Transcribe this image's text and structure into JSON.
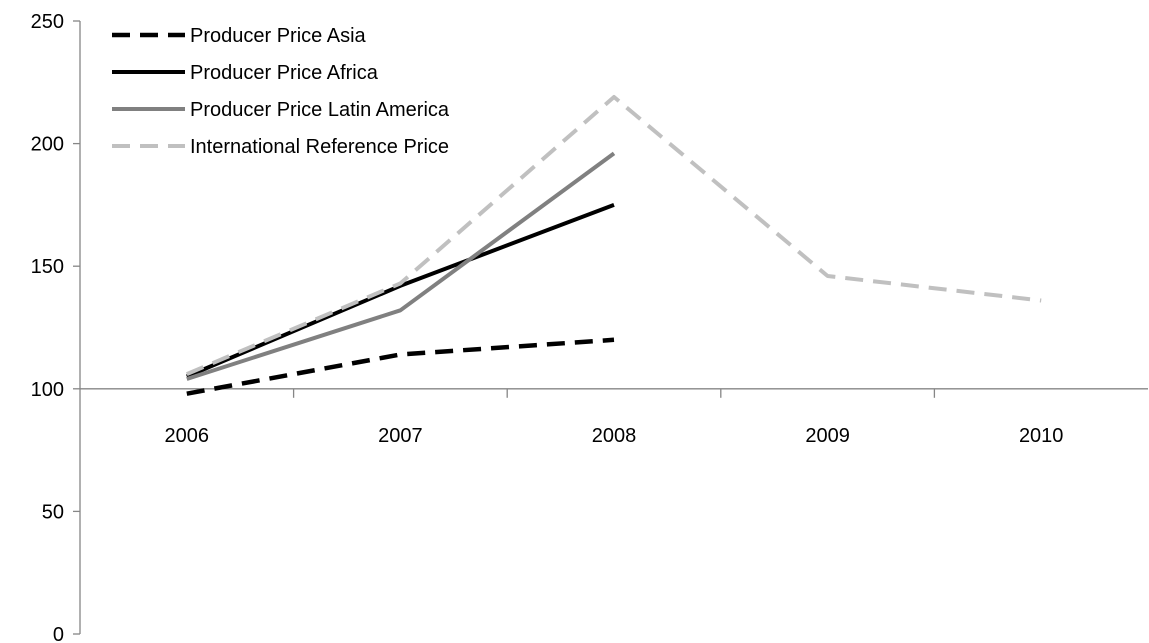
{
  "chart_data": {
    "type": "line",
    "title": "",
    "xlabel": "",
    "ylabel": "",
    "categories": [
      "2006",
      "2007",
      "2008",
      "2009",
      "2010"
    ],
    "ylim": [
      0,
      250
    ],
    "y_ticks": [
      "0",
      "50",
      "100",
      "150",
      "200",
      "250"
    ],
    "x_axis_crosses_at": 100,
    "grid": false,
    "legend_position": "top-left",
    "series": [
      {
        "name": "Producer Price Asia",
        "values": [
          98,
          114,
          120,
          null,
          null
        ],
        "color": "#000000",
        "line_style": "dashed"
      },
      {
        "name": "Producer Price Africa",
        "values": [
          105,
          142,
          175,
          null,
          null
        ],
        "color": "#000000",
        "line_style": "solid"
      },
      {
        "name": "Producer Price Latin America",
        "values": [
          104,
          132,
          196,
          null,
          null
        ],
        "color": "#808080",
        "line_style": "solid"
      },
      {
        "name": "International Reference Price",
        "values": [
          106,
          143,
          219,
          146,
          136
        ],
        "color": "#c0c0c0",
        "line_style": "dashed"
      }
    ]
  }
}
